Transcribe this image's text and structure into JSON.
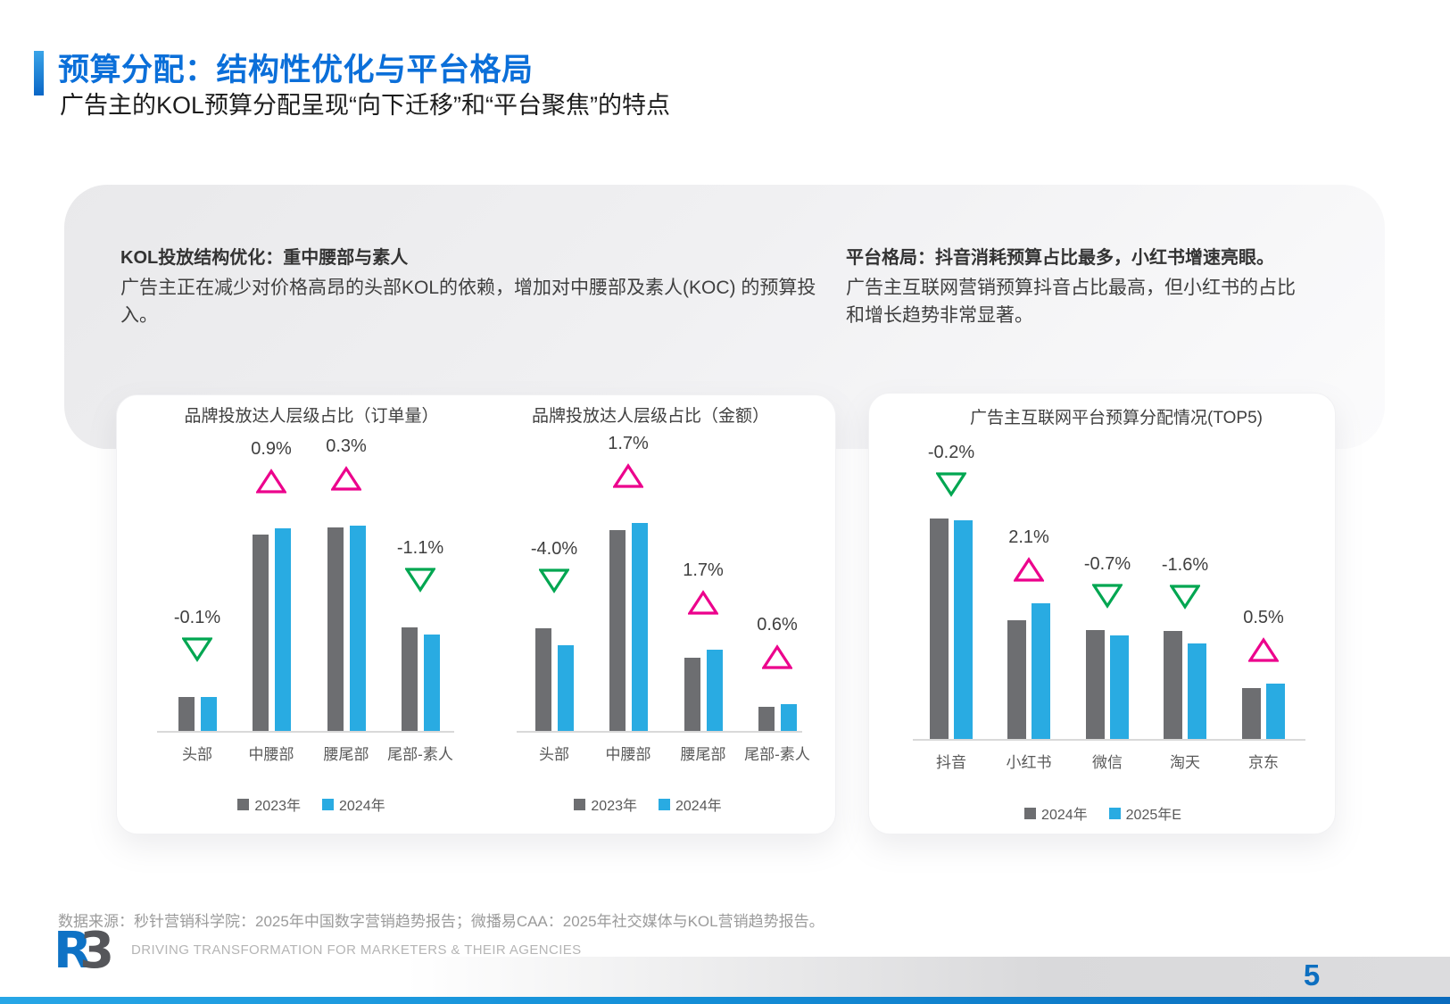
{
  "header": {
    "title": "预算分配：结构性优化与平台格局",
    "subtitle": "广告主的KOL预算分配呈现“向下迁移”和“平台聚焦”的特点"
  },
  "panel": {
    "left": {
      "heading": "KOL投放结构优化：重中腰部与素人",
      "body": "广告主正在减少对价格高昂的头部KOL的依赖，增加对中腰部及素人(KOC) 的预算投入。"
    },
    "right": {
      "heading": "平台格局：抖音消耗预算占比最多，小红书增速亮眼。",
      "body": "广告主互联网营销预算抖音占比最高，但小红书的占比和增长趋势非常显著。"
    }
  },
  "colors": {
    "accent_blue": "#0b6fd9",
    "bar_gray": "#6d6e71",
    "bar_blue": "#29abe2",
    "delta_up_pink": "#ec008c",
    "delta_down_green": "#00a651",
    "axis_gray": "#d9d9d9",
    "bottom_bar_left": "#27a6e6",
    "bottom_bar_right": "#0a6bbd"
  },
  "chart_data": [
    {
      "type": "bar",
      "title": "品牌投放达人层级占比（订单量）",
      "categories": [
        "头部",
        "中腰部",
        "腰尾部",
        "尾部-素人"
      ],
      "series": [
        {
          "name": "2023年",
          "color": "#6d6e71",
          "values": [
            4.9,
            28.0,
            29.0,
            14.8
          ]
        },
        {
          "name": "2024年",
          "color": "#29abe2",
          "values": [
            4.8,
            28.9,
            29.3,
            13.7
          ]
        }
      ],
      "deltas": [
        {
          "label": "-0.1%",
          "direction": "down"
        },
        {
          "label": "0.9%",
          "direction": "up"
        },
        {
          "label": "0.3%",
          "direction": "up"
        },
        {
          "label": "-1.1%",
          "direction": "down"
        }
      ],
      "ylabel": "",
      "xlabel": "",
      "grid": false,
      "legend_position": "bottom"
    },
    {
      "type": "bar",
      "title": "品牌投放达人层级占比（金额）",
      "categories": [
        "头部",
        "中腰部",
        "腰尾部",
        "尾部-素人"
      ],
      "series": [
        {
          "name": "2023年",
          "color": "#6d6e71",
          "values": [
            24.2,
            47.2,
            17.3,
            5.7
          ]
        },
        {
          "name": "2024年",
          "color": "#29abe2",
          "values": [
            20.2,
            48.9,
            19.0,
            6.3
          ]
        }
      ],
      "deltas": [
        {
          "label": "-4.0%",
          "direction": "down"
        },
        {
          "label": "1.7%",
          "direction": "up"
        },
        {
          "label": "1.7%",
          "direction": "up"
        },
        {
          "label": "0.6%",
          "direction": "up"
        }
      ],
      "ylabel": "",
      "xlabel": "",
      "grid": false,
      "legend_position": "bottom"
    },
    {
      "type": "bar",
      "title": "广告主互联网平台预算分配情况(TOP5)",
      "categories": [
        "抖音",
        "小红书",
        "微信",
        "淘天",
        "京东"
      ],
      "series": [
        {
          "name": "2024年",
          "color": "#6d6e71",
          "values": [
            27.3,
            14.7,
            13.5,
            13.4,
            6.3
          ]
        },
        {
          "name": "2025年E",
          "color": "#29abe2",
          "values": [
            27.1,
            16.8,
            12.8,
            11.8,
            6.8
          ]
        }
      ],
      "deltas": [
        {
          "label": "-0.2%",
          "direction": "down"
        },
        {
          "label": "2.1%",
          "direction": "up"
        },
        {
          "label": "-0.7%",
          "direction": "down"
        },
        {
          "label": "-1.6%",
          "direction": "down"
        },
        {
          "label": "0.5%",
          "direction": "up"
        }
      ],
      "ylabel": "",
      "xlabel": "",
      "grid": false,
      "legend_position": "bottom"
    }
  ],
  "footer": {
    "source": "数据来源：秒针营销科学院：2025年中国数字营销趋势报告；微播易CAA：2025年社交媒体与KOL营销趋势报告。",
    "logo_r": "R",
    "logo_3": "3",
    "tagline": "DRIVING TRANSFORMATION FOR MARKETERS & THEIR AGENCIES",
    "page_number": "5"
  }
}
